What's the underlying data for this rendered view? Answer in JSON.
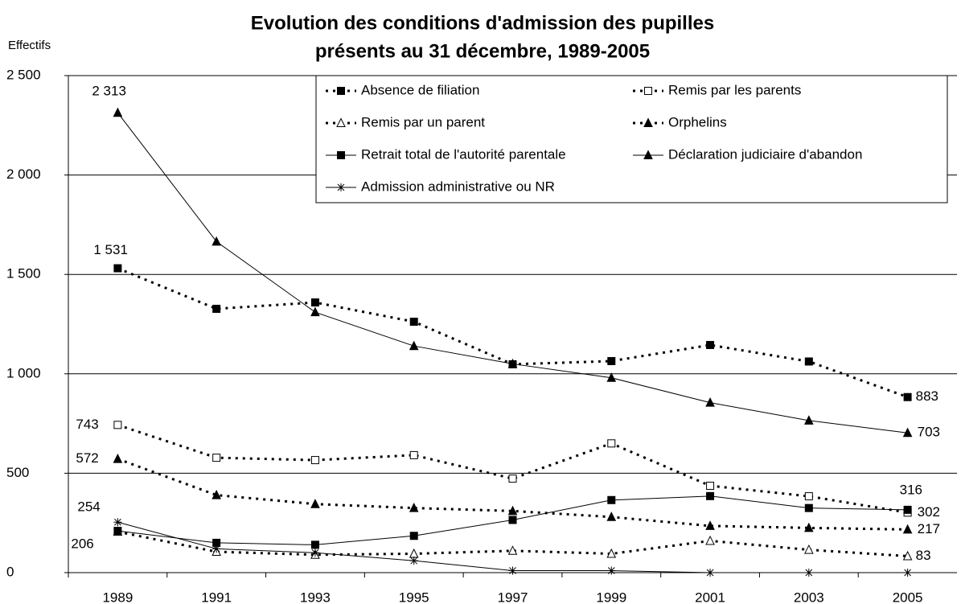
{
  "chart_data": {
    "type": "line",
    "title": "Evolution des conditions d'admission des pupilles",
    "subtitle": "présents au 31 décembre, 1989-2005",
    "y_label": "Effectifs",
    "categories": [
      "1989",
      "1991",
      "1993",
      "1995",
      "1997",
      "1999",
      "2001",
      "2003",
      "2005"
    ],
    "ylim": [
      0,
      2500
    ],
    "yticks": [
      0,
      500,
      {
        "value": 1000,
        "label": "1 000"
      },
      {
        "value": 1500,
        "label": "1 500"
      },
      {
        "value": 2000,
        "label": "2 000"
      },
      {
        "value": 2500,
        "label": "2 500"
      }
    ],
    "grid": true,
    "series": [
      {
        "name": "Absence de filiation",
        "color": "#000000",
        "line_style": "dotted",
        "marker": "square",
        "marker_filled": true,
        "values": [
          1531,
          1327,
          1359,
          1262,
          1048,
          1064,
          1145,
          1062,
          883
        ],
        "value_labels": [
          "1 531",
          null,
          null,
          null,
          null,
          null,
          null,
          null,
          "883"
        ]
      },
      {
        "name": "Remis par les parents",
        "color": "#000000",
        "line_style": "dotted",
        "marker": "square",
        "marker_filled": false,
        "values": [
          743,
          578,
          566,
          591,
          473,
          650,
          437,
          384,
          302
        ],
        "value_labels": [
          "743",
          null,
          null,
          null,
          null,
          null,
          null,
          null,
          "302"
        ]
      },
      {
        "name": "Remis par un parent",
        "color": "#000000",
        "line_style": "dotted",
        "marker": "triangle",
        "marker_filled": false,
        "values": [
          206,
          105,
          90,
          95,
          110,
          95,
          160,
          115,
          83
        ],
        "value_labels": [
          "206",
          null,
          null,
          null,
          null,
          null,
          null,
          null,
          "83"
        ]
      },
      {
        "name": "Orphelins",
        "color": "#000000",
        "line_style": "dotted",
        "marker": "triangle",
        "marker_filled": true,
        "values": [
          572,
          390,
          345,
          325,
          310,
          280,
          235,
          225,
          217
        ],
        "value_labels": [
          "572",
          null,
          null,
          null,
          null,
          null,
          null,
          null,
          "217"
        ]
      },
      {
        "name": "Retrait total de l'autorité parentale",
        "color": "#000000",
        "line_style": "solid",
        "marker": "square",
        "marker_filled": true,
        "values": [
          210,
          150,
          140,
          185,
          265,
          365,
          385,
          325,
          316
        ],
        "value_labels": [
          null,
          null,
          null,
          null,
          null,
          null,
          null,
          null,
          "316"
        ]
      },
      {
        "name": "Déclaration judiciaire d'abandon",
        "color": "#000000",
        "line_style": "solid",
        "marker": "triangle",
        "marker_filled": true,
        "values": [
          2313,
          1665,
          1310,
          1140,
          1050,
          980,
          855,
          765,
          703
        ],
        "value_labels": [
          "2 313",
          null,
          null,
          null,
          null,
          null,
          null,
          null,
          "703"
        ]
      },
      {
        "name": "Admission administrative ou NR",
        "color": "#000000",
        "line_style": "solid",
        "marker": "star",
        "marker_filled": false,
        "values": [
          254,
          120,
          100,
          60,
          10,
          10,
          0,
          0,
          0
        ],
        "value_labels": [
          "254",
          null,
          null,
          null,
          null,
          null,
          null,
          null,
          null
        ]
      }
    ]
  }
}
